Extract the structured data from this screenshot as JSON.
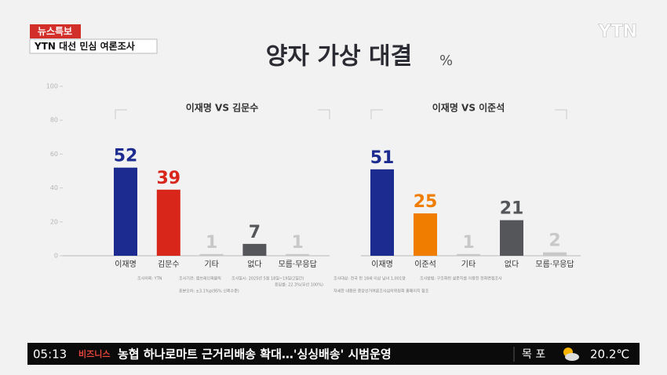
{
  "header": {
    "badge": "뉴스특보",
    "program": "YTN 대선 민심 여론조사",
    "logo": "YTN",
    "title": "양자 가상 대결",
    "unit": "%"
  },
  "chart_data": [
    {
      "type": "bar",
      "subtitle": "이재명 VS 김문수",
      "categories": [
        "이재명",
        "김문수",
        "기타",
        "없다",
        "모름·무응답"
      ],
      "values": [
        52,
        39,
        1,
        7,
        1
      ],
      "colors": [
        "#1c2b8f",
        "#d8261a",
        "#c8c8c8",
        "#55565a",
        "#c8c8c8"
      ],
      "ylim": [
        0,
        100
      ],
      "yticks": [
        0,
        20,
        40,
        60,
        80,
        100
      ]
    },
    {
      "type": "bar",
      "subtitle": "이재명 VS 이준석",
      "categories": [
        "이재명",
        "이준석",
        "기타",
        "없다",
        "모름·무응답"
      ],
      "values": [
        51,
        25,
        1,
        21,
        2
      ],
      "colors": [
        "#1c2b8f",
        "#f07d00",
        "#c8c8c8",
        "#55565a",
        "#c8c8c8"
      ],
      "ylim": [
        0,
        100
      ]
    }
  ],
  "notes": [
    "조사의뢰: YTN",
    "조사기관: 엠브레인퍼블릭",
    "조사일시: 2025년 5월 18일~19일(2일간)",
    "응답률: 22.3%(무선 100%)",
    "조사대상: 전국 만 18세 이상 남녀 1,001명",
    "조사방법: 구조화된 설문지를 이용한 전화면접조사",
    "표본오차: ±3.1%p(95% 신뢰수준)",
    "자세한 내용은 중앙선거여론조사심의위원회 홈페이지 참조"
  ],
  "ticker": {
    "time": "05:13",
    "section": "비즈니스",
    "headline": "농협 하나로마트 근거리배송 확대…'싱싱배송' 시범운영",
    "location": "목 포",
    "temperature": "20.2℃"
  }
}
